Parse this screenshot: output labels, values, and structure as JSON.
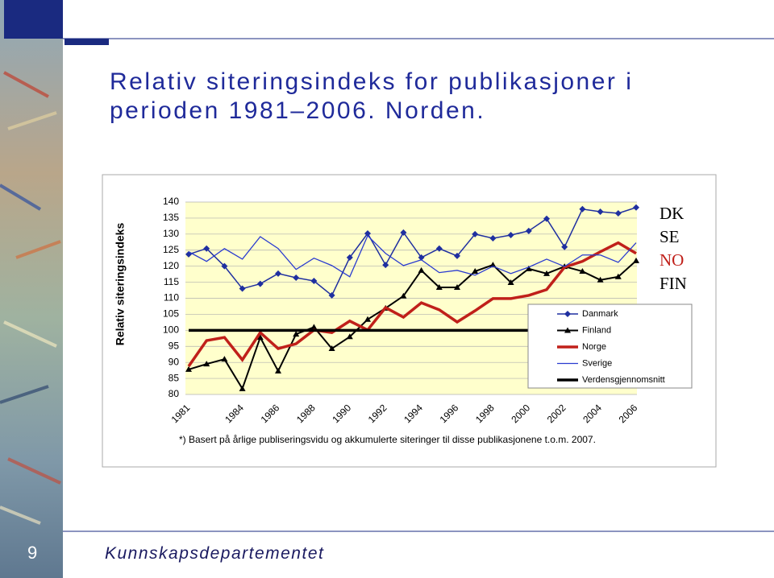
{
  "slide": {
    "title": [
      "Relativ siteringsindeks for publikasjoner i",
      "perioden 1981–2006. Norden."
    ],
    "page_number": "9",
    "footer": "Kunnskapsdepartementet"
  },
  "chart_data": {
    "type": "line",
    "ylabel": "Relativ siteringsindeks",
    "footnote": "*) Basert på årlige publiseringsvidu og akkumulerte siteringer til disse publikasjonene t.o.m. 2007.",
    "x": [
      1981,
      1982,
      1983,
      1984,
      1985,
      1986,
      1987,
      1988,
      1989,
      1990,
      1991,
      1992,
      1993,
      1994,
      1995,
      1996,
      1997,
      1998,
      1999,
      2000,
      2001,
      2002,
      2003,
      2004,
      2005,
      2006
    ],
    "xlim": [
      1981,
      2006
    ],
    "xticks": [
      1981,
      1984,
      1986,
      1988,
      1990,
      1992,
      1994,
      1996,
      1998,
      2000,
      2002,
      2004,
      2006
    ],
    "ylim": [
      80,
      140
    ],
    "yticks": [
      80,
      85,
      90,
      95,
      100,
      105,
      110,
      115,
      120,
      125,
      130,
      135,
      140
    ],
    "grid": true,
    "legend": "lower right",
    "series": [
      {
        "name": "Danmark",
        "color": "#1f2fa0",
        "marker": "diamond",
        "values": [
          123.7,
          125.5,
          120,
          113,
          114.5,
          117.7,
          116.4,
          115.4,
          110.9,
          122.7,
          130.2,
          120.4,
          130.5,
          122.7,
          125.5,
          123.2,
          130,
          128.7,
          129.7,
          131,
          134.8,
          126,
          137.8,
          137,
          136.5,
          138.3
        ]
      },
      {
        "name": "Finland",
        "color": "#000000",
        "marker": "triangle",
        "values": [
          87.8,
          89.5,
          91,
          81.8,
          97.8,
          87.3,
          98.8,
          101,
          94.3,
          98,
          103.4,
          106.9,
          110.7,
          118.7,
          113.4,
          113.4,
          118.4,
          120.4,
          114.9,
          119.2,
          117.7,
          119.9,
          118.4,
          115.7,
          116.7,
          121.7
        ]
      },
      {
        "name": "Norge",
        "color": "#c0201a",
        "values": [
          88.8,
          96.8,
          97.8,
          90.8,
          99.3,
          94.3,
          95.8,
          100.1,
          99.3,
          102.9,
          100.1,
          107.1,
          104.1,
          108.6,
          106.4,
          102.6,
          106.1,
          109.9,
          109.9,
          110.9,
          112.7,
          119.7,
          121.5,
          124.5,
          127.3,
          124
        ]
      },
      {
        "name": "Sverige",
        "color": "#2a3bd0",
        "values": [
          124.5,
          121.5,
          125.5,
          122.2,
          129.2,
          125.5,
          119,
          122.5,
          120.2,
          116.7,
          129.5,
          124,
          120.2,
          122,
          118,
          118.7,
          117.2,
          120,
          117.7,
          119.7,
          122.2,
          119.9,
          123.5,
          123.5,
          121.2,
          127.3
        ]
      },
      {
        "name": "Verdensgjennomsnitt",
        "color": "#000000",
        "values": [
          100,
          100,
          100,
          100,
          100,
          100,
          100,
          100,
          100,
          100,
          100,
          100,
          100,
          100,
          100,
          100,
          100,
          100,
          100,
          100,
          100,
          100,
          100,
          100,
          100,
          100
        ]
      }
    ],
    "annotations": [
      {
        "text": "DK",
        "color": "#000000"
      },
      {
        "text": "SE",
        "color": "#000000"
      },
      {
        "text": "NO",
        "color": "#c0201a"
      },
      {
        "text": "FIN",
        "color": "#000000"
      }
    ]
  }
}
